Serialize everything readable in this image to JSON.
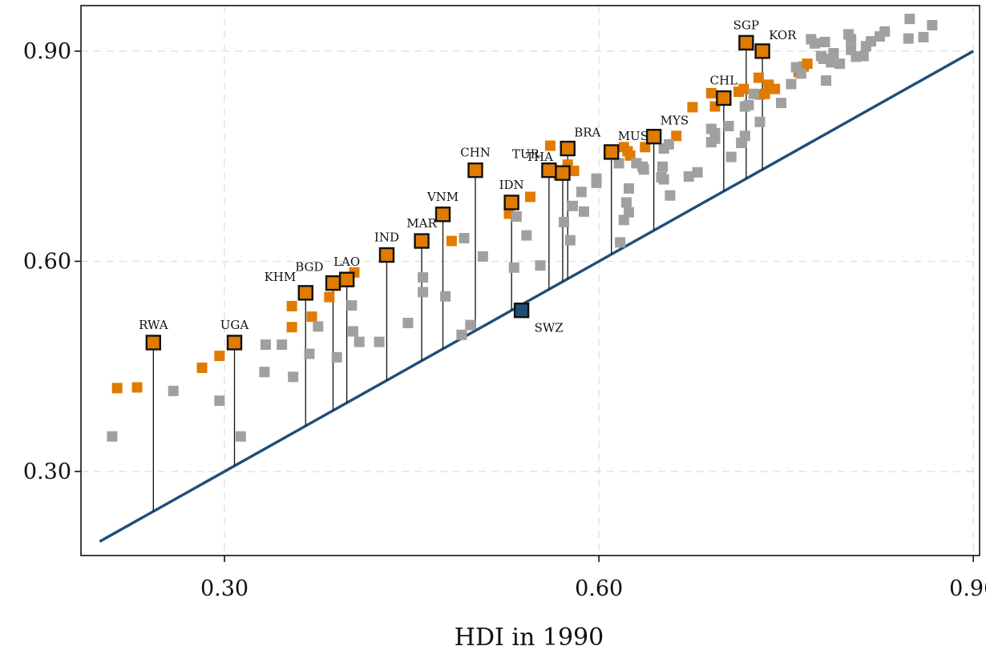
{
  "chart_data": {
    "type": "scatter",
    "title": "",
    "xlabel": "HDI in 1990",
    "ylabel": "",
    "xlim": [
      0.185,
      0.905
    ],
    "ylim": [
      0.18,
      0.965
    ],
    "x_ticks": [
      {
        "value": 0.3,
        "label": "0.30"
      },
      {
        "value": 0.6,
        "label": "0.60"
      },
      {
        "value": 0.9,
        "label": "0.90"
      }
    ],
    "y_ticks": [
      {
        "value": 0.3,
        "label": "0.30"
      },
      {
        "value": 0.6,
        "label": "0.60"
      },
      {
        "value": 0.9,
        "label": "0.90"
      }
    ],
    "grid": true,
    "reference_line": {
      "from": [
        0.2,
        0.2
      ],
      "to": [
        0.9,
        0.9
      ],
      "color": "#1f4e79"
    },
    "colors": {
      "highlight": "#e07b00",
      "other": "#a0a0a0",
      "reference": "#1f4e79",
      "swz": "#1f4e79",
      "outline": "#111111",
      "stem": "#111111",
      "grid": "#dddddd"
    },
    "labeled_points": [
      {
        "label": "RWA",
        "x": 0.243,
        "y": 0.484,
        "label_pos": "above"
      },
      {
        "label": "UGA",
        "x": 0.308,
        "y": 0.484,
        "label_pos": "above"
      },
      {
        "label": "KHM",
        "x": 0.365,
        "y": 0.555,
        "label_pos": "upper-left"
      },
      {
        "label": "BGD",
        "x": 0.387,
        "y": 0.569,
        "label_pos": "upper-left"
      },
      {
        "label": "LAO",
        "x": 0.398,
        "y": 0.574,
        "label_pos": "above"
      },
      {
        "label": "IND",
        "x": 0.43,
        "y": 0.609,
        "label_pos": "above"
      },
      {
        "label": "MAR",
        "x": 0.458,
        "y": 0.629,
        "label_pos": "above"
      },
      {
        "label": "VNM",
        "x": 0.475,
        "y": 0.667,
        "label_pos": "above"
      },
      {
        "label": "CHN",
        "x": 0.501,
        "y": 0.73,
        "label_pos": "above"
      },
      {
        "label": "IDN",
        "x": 0.53,
        "y": 0.684,
        "label_pos": "above"
      },
      {
        "label": "THA",
        "x": 0.571,
        "y": 0.726,
        "label_pos": "upper-left"
      },
      {
        "label": "TUR",
        "x": 0.56,
        "y": 0.73,
        "label_pos": "upper-left"
      },
      {
        "label": "BRA",
        "x": 0.575,
        "y": 0.761,
        "label_pos": "upper-right"
      },
      {
        "label": "MUS",
        "x": 0.61,
        "y": 0.756,
        "label_pos": "upper-right"
      },
      {
        "label": "MYS",
        "x": 0.644,
        "y": 0.778,
        "label_pos": "upper-right"
      },
      {
        "label": "CHL",
        "x": 0.7,
        "y": 0.833,
        "label_pos": "above"
      },
      {
        "label": "SGP",
        "x": 0.718,
        "y": 0.912,
        "label_pos": "above"
      },
      {
        "label": "KOR",
        "x": 0.731,
        "y": 0.9,
        "label_pos": "upper-right"
      }
    ],
    "swz_point": {
      "label": "SWZ",
      "x": 0.538,
      "y": 0.53,
      "label_pos": "lower-right"
    },
    "series": [
      {
        "color_key": "highlight",
        "points": [
          [
            0.214,
            0.419
          ],
          [
            0.23,
            0.42
          ],
          [
            0.282,
            0.448
          ],
          [
            0.296,
            0.465
          ],
          [
            0.354,
            0.536
          ],
          [
            0.354,
            0.506
          ],
          [
            0.37,
            0.521
          ],
          [
            0.384,
            0.549
          ],
          [
            0.404,
            0.584
          ],
          [
            0.482,
            0.629
          ],
          [
            0.528,
            0.668
          ],
          [
            0.545,
            0.692
          ],
          [
            0.561,
            0.765
          ],
          [
            0.568,
            0.723
          ],
          [
            0.575,
            0.738
          ],
          [
            0.58,
            0.729
          ],
          [
            0.62,
            0.763
          ],
          [
            0.623,
            0.757
          ],
          [
            0.625,
            0.751
          ],
          [
            0.637,
            0.763
          ],
          [
            0.662,
            0.779
          ],
          [
            0.675,
            0.82
          ],
          [
            0.69,
            0.84
          ],
          [
            0.693,
            0.821
          ],
          [
            0.7,
            0.835
          ],
          [
            0.712,
            0.842
          ],
          [
            0.716,
            0.846
          ],
          [
            0.728,
            0.862
          ],
          [
            0.729,
            0.838
          ],
          [
            0.733,
            0.839
          ],
          [
            0.736,
            0.852
          ],
          [
            0.741,
            0.846
          ],
          [
            0.76,
            0.87
          ],
          [
            0.764,
            0.878
          ],
          [
            0.767,
            0.882
          ]
        ]
      },
      {
        "color_key": "other",
        "points": [
          [
            0.21,
            0.35
          ],
          [
            0.259,
            0.415
          ],
          [
            0.296,
            0.401
          ],
          [
            0.313,
            0.35
          ],
          [
            0.332,
            0.442
          ],
          [
            0.333,
            0.481
          ],
          [
            0.346,
            0.481
          ],
          [
            0.355,
            0.435
          ],
          [
            0.368,
            0.468
          ],
          [
            0.375,
            0.507
          ],
          [
            0.39,
            0.463
          ],
          [
            0.402,
            0.537
          ],
          [
            0.403,
            0.5
          ],
          [
            0.408,
            0.485
          ],
          [
            0.424,
            0.485
          ],
          [
            0.447,
            0.512
          ],
          [
            0.459,
            0.577
          ],
          [
            0.459,
            0.556
          ],
          [
            0.477,
            0.55
          ],
          [
            0.49,
            0.495
          ],
          [
            0.492,
            0.633
          ],
          [
            0.497,
            0.509
          ],
          [
            0.507,
            0.607
          ],
          [
            0.532,
            0.591
          ],
          [
            0.534,
            0.664
          ],
          [
            0.542,
            0.637
          ],
          [
            0.553,
            0.594
          ],
          [
            0.572,
            0.656
          ],
          [
            0.577,
            0.63
          ],
          [
            0.579,
            0.679
          ],
          [
            0.588,
            0.671
          ],
          [
            0.586,
            0.699
          ],
          [
            0.598,
            0.718
          ],
          [
            0.598,
            0.712
          ],
          [
            0.616,
            0.74
          ],
          [
            0.617,
            0.627
          ],
          [
            0.62,
            0.659
          ],
          [
            0.622,
            0.684
          ],
          [
            0.624,
            0.704
          ],
          [
            0.624,
            0.67
          ],
          [
            0.63,
            0.74
          ],
          [
            0.635,
            0.735
          ],
          [
            0.636,
            0.731
          ],
          [
            0.652,
            0.717
          ],
          [
            0.65,
            0.72
          ],
          [
            0.651,
            0.735
          ],
          [
            0.652,
            0.761
          ],
          [
            0.656,
            0.767
          ],
          [
            0.657,
            0.694
          ],
          [
            0.672,
            0.721
          ],
          [
            0.679,
            0.727
          ],
          [
            0.69,
            0.789
          ],
          [
            0.693,
            0.783
          ],
          [
            0.693,
            0.775
          ],
          [
            0.69,
            0.77
          ],
          [
            0.704,
            0.793
          ],
          [
            0.706,
            0.749
          ],
          [
            0.714,
            0.769
          ],
          [
            0.717,
            0.779
          ],
          [
            0.717,
            0.821
          ],
          [
            0.72,
            0.823
          ],
          [
            0.724,
            0.839
          ],
          [
            0.729,
            0.799
          ],
          [
            0.746,
            0.826
          ],
          [
            0.754,
            0.853
          ],
          [
            0.758,
            0.877
          ],
          [
            0.762,
            0.868
          ],
          [
            0.77,
            0.917
          ],
          [
            0.773,
            0.911
          ],
          [
            0.778,
            0.893
          ],
          [
            0.78,
            0.889
          ],
          [
            0.781,
            0.913
          ],
          [
            0.782,
            0.858
          ],
          [
            0.786,
            0.884
          ],
          [
            0.788,
            0.897
          ],
          [
            0.793,
            0.882
          ],
          [
            0.8,
            0.924
          ],
          [
            0.802,
            0.917
          ],
          [
            0.802,
            0.902
          ],
          [
            0.806,
            0.892
          ],
          [
            0.812,
            0.893
          ],
          [
            0.814,
            0.907
          ],
          [
            0.818,
            0.914
          ],
          [
            0.825,
            0.921
          ],
          [
            0.829,
            0.928
          ],
          [
            0.848,
            0.918
          ],
          [
            0.849,
            0.946
          ],
          [
            0.86,
            0.92
          ],
          [
            0.867,
            0.937
          ]
        ]
      }
    ]
  }
}
